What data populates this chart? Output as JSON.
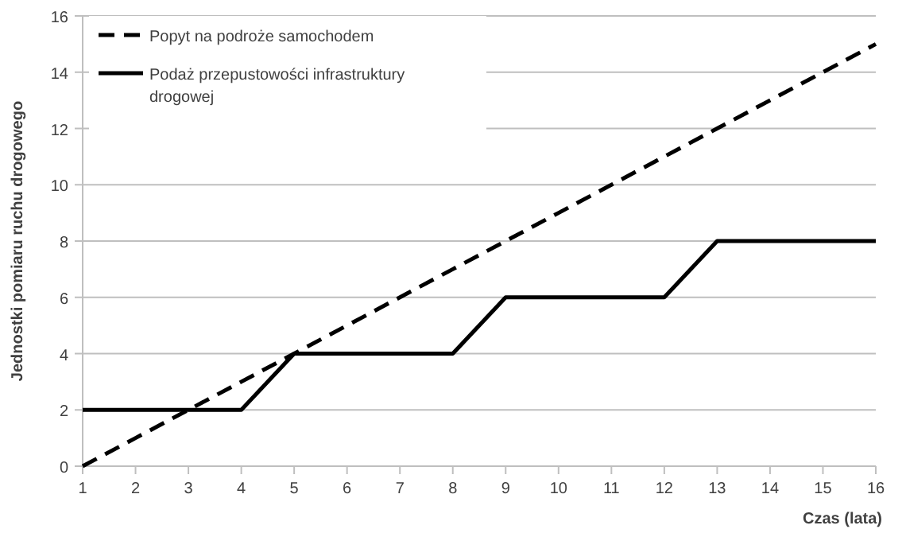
{
  "chart_data": {
    "type": "line",
    "xlabel": "Czas (lata)",
    "ylabel": "Jednostki pomiaru ruchu drogowego",
    "x": [
      1,
      2,
      3,
      4,
      5,
      6,
      7,
      8,
      9,
      10,
      11,
      12,
      13,
      14,
      15,
      16
    ],
    "series": [
      {
        "name": "Popyt na podroże samochodem",
        "color": "#000000",
        "line_style": "dashed",
        "values": [
          0,
          1,
          2,
          3,
          4,
          5,
          6,
          7,
          8,
          9,
          10,
          11,
          12,
          13,
          14,
          15
        ]
      },
      {
        "name": "Podaż przepustowości infrastruktury drogowej",
        "color": "#000000",
        "line_style": "solid",
        "values": [
          2,
          2,
          2,
          2,
          4,
          4,
          4,
          4,
          6,
          6,
          6,
          6,
          8,
          8,
          8,
          8
        ]
      }
    ],
    "xlim": [
      1,
      16
    ],
    "xticks": [
      1,
      2,
      3,
      4,
      5,
      6,
      7,
      8,
      9,
      10,
      11,
      12,
      13,
      14,
      15,
      16
    ],
    "ylim": [
      0,
      16
    ],
    "yticks": [
      0,
      2,
      4,
      6,
      8,
      10,
      12,
      14,
      16
    ],
    "grid": "y",
    "legend": "top left",
    "marker": "none"
  }
}
